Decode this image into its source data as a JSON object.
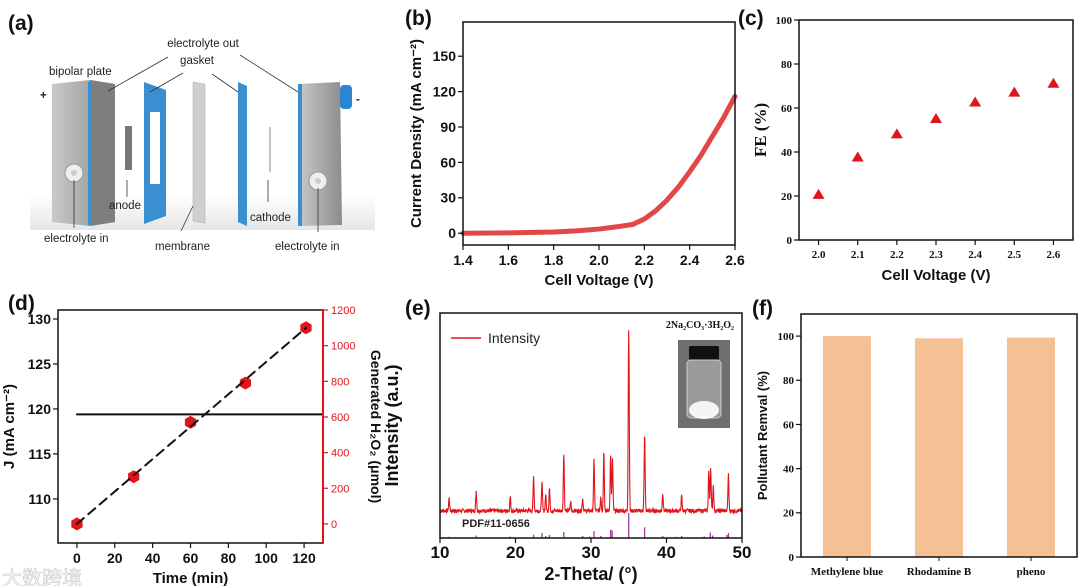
{
  "panel_labels": [
    "(a)",
    "(b)",
    "(c)",
    "(d)",
    "(e)",
    "(f)"
  ],
  "diagram_a": {
    "labels": {
      "electrolyte_out": "electrolyte out",
      "gasket": "gasket",
      "bipolar_plate": "bipolar plate",
      "plus": "+",
      "minus": "-",
      "anode": "anode",
      "cathode": "cathode",
      "electrolyte_in_left": "electrolyte in",
      "membrane": "membrane",
      "electrolyte_in_right": "electrolyte in"
    },
    "colors": {
      "plate": "#a7a7a5",
      "gasket": "#3a8fd0",
      "membrane": "#c8c8c8",
      "knob": "#2a86d0"
    }
  },
  "watermark": "大数跨境",
  "chart_data": [
    {
      "type": "line",
      "panel": "b",
      "xlabel": "Cell Voltage (V)",
      "ylabel": "Current Density (mA cm⁻²)",
      "xlim": [
        1.4,
        2.6
      ],
      "ylim": [
        -10,
        179
      ],
      "xticks": [
        "1.4",
        "1.6",
        "1.8",
        "2.0",
        "2.2",
        "2.4",
        "2.6"
      ],
      "yticks": [
        "0",
        "30",
        "60",
        "90",
        "120",
        "150"
      ],
      "series": [
        {
          "name": "current density",
          "color": "#e04848",
          "x": [
            1.4,
            1.6,
            1.8,
            1.9,
            2.0,
            2.1,
            2.15,
            2.2,
            2.25,
            2.3,
            2.35,
            2.4,
            2.45,
            2.5,
            2.55,
            2.6
          ],
          "y": [
            0,
            0.3,
            1,
            2,
            3.5,
            6,
            7.5,
            12,
            19,
            28,
            39,
            52,
            66,
            82,
            98,
            116
          ]
        }
      ]
    },
    {
      "type": "scatter",
      "panel": "c",
      "xlabel": "Cell Voltage (V)",
      "ylabel": "FE (%)",
      "xlim": [
        1.95,
        2.65
      ],
      "ylim": [
        0,
        100
      ],
      "xticks": [
        "2.0",
        "2.1",
        "2.2",
        "2.3",
        "2.4",
        "2.5",
        "2.6"
      ],
      "yticks": [
        "0",
        "20",
        "40",
        "60",
        "80",
        "100"
      ],
      "series": [
        {
          "name": "FE",
          "color": "#e0141b",
          "marker": "triangle",
          "x": [
            2.0,
            2.1,
            2.2,
            2.3,
            2.4,
            2.5,
            2.6
          ],
          "y": [
            20.5,
            37.5,
            48,
            55,
            62.5,
            67,
            71
          ]
        }
      ]
    },
    {
      "type": "line",
      "panel": "d",
      "xlabel": "Time (min)",
      "ylabel": "J (mA cm⁻²)",
      "ylabel_right": "Generated H₂O₂ (μmol)",
      "xlim": [
        -10,
        130
      ],
      "ylim": [
        105.1,
        131
      ],
      "ylim_right": [
        -107,
        1200
      ],
      "xticks": [
        "0",
        "20",
        "40",
        "60",
        "80",
        "100",
        "120"
      ],
      "yticks": [
        "110",
        "115",
        "120",
        "125",
        "130"
      ],
      "yticks_right": [
        "0",
        "200",
        "400",
        "600",
        "800",
        "1000",
        "1200"
      ],
      "right_axis_color": "#e0141b",
      "series": [
        {
          "name": "J",
          "color": "#111111",
          "axis": "left",
          "x": [
            0,
            130
          ],
          "y": [
            119.4,
            119.4
          ]
        },
        {
          "name": "Generated H2O2",
          "color": "#e0141b",
          "axis": "right",
          "marker": "hexagon",
          "x": [
            0,
            30,
            60,
            89,
            121
          ],
          "y": [
            0,
            265,
            570,
            790,
            1100
          ]
        },
        {
          "name": "linear fit",
          "color": "#111111",
          "axis": "right",
          "dashed": true,
          "x": [
            0,
            121
          ],
          "y": [
            0,
            1100
          ]
        }
      ]
    },
    {
      "type": "line",
      "panel": "e",
      "xlabel": "2-Theta/ (°)",
      "ylabel": "Intensity (a.u.)",
      "xlim": [
        10,
        50
      ],
      "ylim": [
        -15,
        109
      ],
      "xticks": [
        "10",
        "20",
        "30",
        "40",
        "50"
      ],
      "legend": "Intensity",
      "legend_position": "top-left",
      "inset_label": "2Na₂CO₃·3H₂O₂",
      "reference_label": "PDF#11-0656",
      "series": [
        {
          "name": "Intensity",
          "color": "#e0141b",
          "peaks_2theta": [
            11.2,
            14.8,
            19.3,
            22.4,
            23.5,
            24.0,
            24.5,
            26.4,
            27.3,
            28.9,
            30.4,
            31.3,
            31.7,
            32.6,
            32.85,
            35.0,
            37.1,
            39.5,
            42.0,
            45.6,
            45.85,
            46.2,
            48.2
          ],
          "peaks_intensity": [
            7,
            11,
            8,
            19,
            16,
            9,
            12.6,
            32,
            5,
            7,
            28,
            8,
            33,
            30,
            29,
            100,
            42,
            10,
            8,
            22,
            24,
            14,
            20
          ]
        }
      ],
      "reference": {
        "name": "PDF#11-0656",
        "color": "#a040a0",
        "x": [
          11.2,
          14.8,
          19.3,
          22.4,
          23.5,
          24.0,
          24.5,
          26.4,
          28.9,
          29.8,
          30.4,
          31.3,
          32.6,
          32.8,
          35.0,
          37.1,
          39.5,
          41.2,
          42.0,
          45.0,
          45.8,
          46.1,
          48.0,
          48.2
        ],
        "y": [
          5,
          10,
          6,
          14,
          20,
          8,
          12,
          24,
          8,
          6,
          28,
          8,
          33,
          30,
          100,
          43,
          8,
          5,
          8,
          6,
          22,
          10,
          12,
          20
        ]
      }
    },
    {
      "type": "bar",
      "panel": "f",
      "xlabel": "",
      "ylabel": "Pollutant  Remval (%)",
      "ylim": [
        0,
        110
      ],
      "categories": [
        "Methylene blue",
        "Rhodamine B",
        "pheno"
      ],
      "values": [
        100,
        99,
        99.3
      ],
      "yticks": [
        "0",
        "20",
        "40",
        "60",
        "80",
        "100"
      ],
      "color": "#f4c195"
    }
  ]
}
